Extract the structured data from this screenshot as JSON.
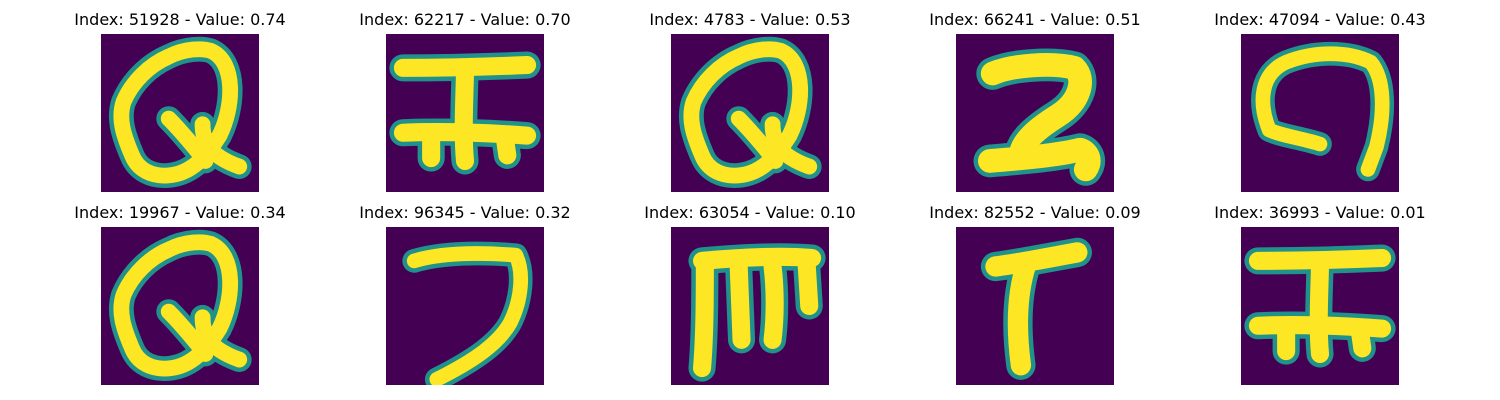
{
  "palette": {
    "background": "#440154",
    "mid": "#21918c",
    "stroke": "#fde725",
    "page": "#ffffff"
  },
  "panels": [
    {
      "title": "Index: 51928 - Value: 0.74",
      "glyph": "letter-q-looped"
    },
    {
      "title": "Index: 62217 - Value: 0.70",
      "glyph": "i-beam-shape"
    },
    {
      "title": "Index: 4783 - Value: 0.53",
      "glyph": "letter-q-looped"
    },
    {
      "title": "Index: 66241 - Value: 0.51",
      "glyph": "digit-2-shape"
    },
    {
      "title": "Index: 47094 - Value: 0.43",
      "glyph": "arch-shape"
    },
    {
      "title": "Index: 19967 - Value: 0.34",
      "glyph": "letter-q-looped"
    },
    {
      "title": "Index: 96345 - Value: 0.32",
      "glyph": "digit-7-shape"
    },
    {
      "title": "Index: 63054 - Value: 0.10",
      "glyph": "letter-m-comb"
    },
    {
      "title": "Index: 82552 - Value: 0.09",
      "glyph": "letter-t-shape"
    },
    {
      "title": "Index: 36993 - Value: 0.01",
      "glyph": "i-beam-shape"
    }
  ]
}
